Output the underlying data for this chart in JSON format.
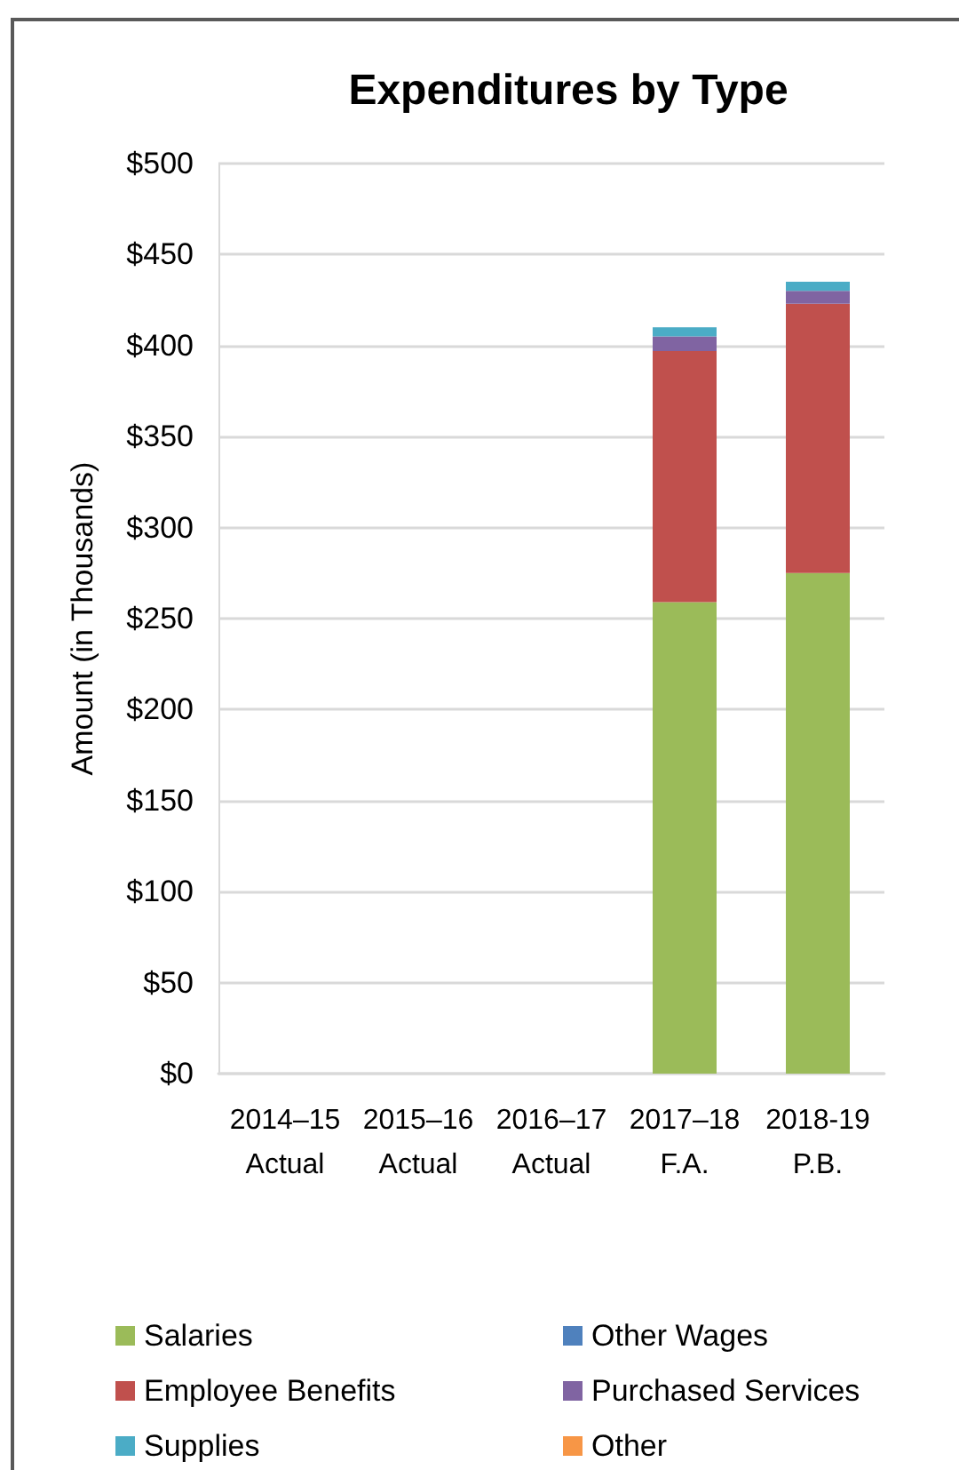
{
  "chart_data": {
    "type": "bar",
    "title": "Expenditures by Type",
    "ylabel": "Amount (in Thousands)",
    "categories": [
      "2014–15\nActual",
      "2015–16\nActual",
      "2016–17\nActual",
      "2017–18\nF.A.",
      "2018-19\nP.B."
    ],
    "series": [
      {
        "name": "Salaries",
        "color": "#9bbb59",
        "values": [
          null,
          null,
          null,
          259,
          275
        ]
      },
      {
        "name": "Other Wages",
        "color": "#4f81bd",
        "values": [
          null,
          null,
          null,
          null,
          null
        ]
      },
      {
        "name": "Employee Benefits",
        "color": "#c0504d",
        "values": [
          null,
          null,
          null,
          138,
          148
        ]
      },
      {
        "name": "Purchased Services",
        "color": "#8064a2",
        "values": [
          null,
          null,
          null,
          8,
          7
        ]
      },
      {
        "name": "Supplies",
        "color": "#4bacc6",
        "values": [
          null,
          null,
          null,
          5,
          5
        ]
      },
      {
        "name": "Other",
        "color": "#f79646",
        "values": [
          null,
          null,
          null,
          null,
          null
        ]
      }
    ],
    "stacked": true,
    "ylim": [
      0,
      500
    ],
    "yticks": [
      {
        "value": 0,
        "label": "$0"
      },
      {
        "value": 50,
        "label": "$50"
      },
      {
        "value": 100,
        "label": "$100"
      },
      {
        "value": 150,
        "label": "$150"
      },
      {
        "value": 200,
        "label": "$200"
      },
      {
        "value": 250,
        "label": "$250"
      },
      {
        "value": 300,
        "label": "$300"
      },
      {
        "value": 350,
        "label": "$350"
      },
      {
        "value": 400,
        "label": "$400"
      },
      {
        "value": 450,
        "label": "$450"
      },
      {
        "value": 500,
        "label": "$500"
      }
    ],
    "grid": "y",
    "legend": "bottom"
  }
}
